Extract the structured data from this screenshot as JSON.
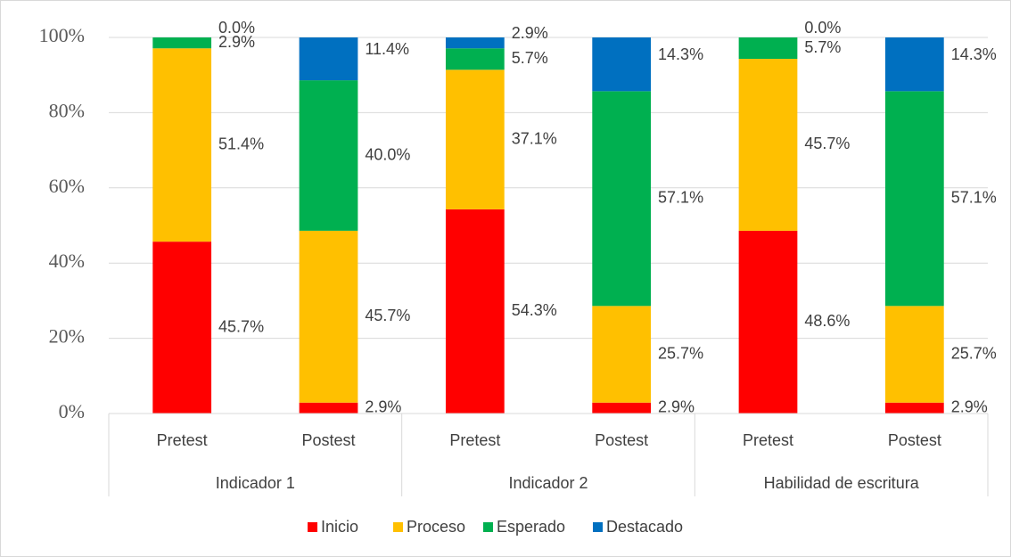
{
  "chart_data": {
    "type": "stacked_bar",
    "categories": [
      "Pretest",
      "Postest",
      "Pretest",
      "Postest",
      "Pretest",
      "Postest"
    ],
    "groups": [
      "Indicador 1",
      "Indicador 2",
      "Habilidad de escritura"
    ],
    "series": [
      {
        "name": "Inicio",
        "color": "#ff0000",
        "values": [
          45.7,
          2.9,
          54.3,
          2.9,
          48.6,
          2.9
        ],
        "value_labels": [
          "45.7%",
          "2.9%",
          "54.3%",
          "2.9%",
          "48.6%",
          "2.9%"
        ]
      },
      {
        "name": "Proceso",
        "color": "#ffc000",
        "values": [
          51.4,
          45.7,
          37.1,
          25.7,
          45.7,
          25.7
        ],
        "value_labels": [
          "51.4%",
          "45.7%",
          "37.1%",
          "25.7%",
          "45.7%",
          "25.7%"
        ]
      },
      {
        "name": "Esperado",
        "color": "#00b050",
        "values": [
          2.9,
          40.0,
          5.7,
          57.1,
          5.7,
          57.1
        ],
        "value_labels": [
          "2.9%",
          "40.0%",
          "5.7%",
          "57.1%",
          "5.7%",
          "57.1%"
        ]
      },
      {
        "name": "Destacado",
        "color": "#0070c0",
        "values": [
          0.0,
          11.4,
          2.9,
          14.3,
          0.0,
          14.3
        ],
        "value_labels": [
          "0.0%",
          "11.4%",
          "2.9%",
          "14.3%",
          "0.0%",
          "14.3%"
        ]
      }
    ],
    "ylim": [
      0,
      100
    ],
    "yticks": [
      {
        "value": 0,
        "label": "0%"
      },
      {
        "value": 20,
        "label": "20%"
      },
      {
        "value": 40,
        "label": "40%"
      },
      {
        "value": 60,
        "label": "60%"
      },
      {
        "value": 80,
        "label": "80%"
      },
      {
        "value": 100,
        "label": "100%"
      }
    ],
    "grid": true,
    "legend": "bottom"
  }
}
